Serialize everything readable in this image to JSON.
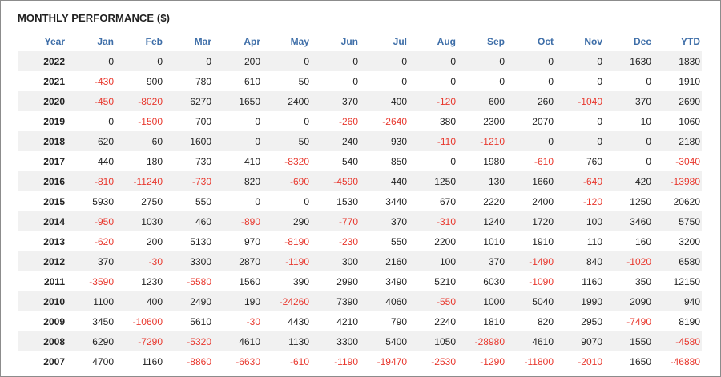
{
  "title": "MONTHLY PERFORMANCE ($)",
  "colors": {
    "header_text": "#3e6ea8",
    "negative": "#e8382e",
    "stripe": "#f1f1f1"
  },
  "columns": [
    "Year",
    "Jan",
    "Feb",
    "Mar",
    "Apr",
    "May",
    "Jun",
    "Jul",
    "Aug",
    "Sep",
    "Oct",
    "Nov",
    "Dec",
    "YTD"
  ],
  "rows": [
    [
      "2022",
      "0",
      "0",
      "0",
      "200",
      "0",
      "0",
      "0",
      "0",
      "0",
      "0",
      "0",
      "1630",
      "1830"
    ],
    [
      "2021",
      "-430",
      "900",
      "780",
      "610",
      "50",
      "0",
      "0",
      "0",
      "0",
      "0",
      "0",
      "0",
      "1910"
    ],
    [
      "2020",
      "-450",
      "-8020",
      "6270",
      "1650",
      "2400",
      "370",
      "400",
      "-120",
      "600",
      "260",
      "-1040",
      "370",
      "2690"
    ],
    [
      "2019",
      "0",
      "-1500",
      "700",
      "0",
      "0",
      "-260",
      "-2640",
      "380",
      "2300",
      "2070",
      "0",
      "10",
      "1060"
    ],
    [
      "2018",
      "620",
      "60",
      "1600",
      "0",
      "50",
      "240",
      "930",
      "-110",
      "-1210",
      "0",
      "0",
      "0",
      "2180"
    ],
    [
      "2017",
      "440",
      "180",
      "730",
      "410",
      "-8320",
      "540",
      "850",
      "0",
      "1980",
      "-610",
      "760",
      "0",
      "-3040"
    ],
    [
      "2016",
      "-810",
      "-11240",
      "-730",
      "820",
      "-690",
      "-4590",
      "440",
      "1250",
      "130",
      "1660",
      "-640",
      "420",
      "-13980"
    ],
    [
      "2015",
      "5930",
      "2750",
      "550",
      "0",
      "0",
      "1530",
      "3440",
      "670",
      "2220",
      "2400",
      "-120",
      "1250",
      "20620"
    ],
    [
      "2014",
      "-950",
      "1030",
      "460",
      "-890",
      "290",
      "-770",
      "370",
      "-310",
      "1240",
      "1720",
      "100",
      "3460",
      "5750"
    ],
    [
      "2013",
      "-620",
      "200",
      "5130",
      "970",
      "-8190",
      "-230",
      "550",
      "2200",
      "1010",
      "1910",
      "110",
      "160",
      "3200"
    ],
    [
      "2012",
      "370",
      "-30",
      "3300",
      "2870",
      "-1190",
      "300",
      "2160",
      "100",
      "370",
      "-1490",
      "840",
      "-1020",
      "6580"
    ],
    [
      "2011",
      "-3590",
      "1230",
      "-5580",
      "1560",
      "390",
      "2990",
      "3490",
      "5210",
      "6030",
      "-1090",
      "1160",
      "350",
      "12150"
    ],
    [
      "2010",
      "1100",
      "400",
      "2490",
      "190",
      "-24260",
      "7390",
      "4060",
      "-550",
      "1000",
      "5040",
      "1990",
      "2090",
      "940"
    ],
    [
      "2009",
      "3450",
      "-10600",
      "5610",
      "-30",
      "4430",
      "4210",
      "790",
      "2240",
      "1810",
      "820",
      "2950",
      "-7490",
      "8190"
    ],
    [
      "2008",
      "6290",
      "-7290",
      "-5320",
      "4610",
      "1130",
      "3300",
      "5400",
      "1050",
      "-28980",
      "4610",
      "9070",
      "1550",
      "-4580"
    ],
    [
      "2007",
      "4700",
      "1160",
      "-8860",
      "-6630",
      "-610",
      "-1190",
      "-19470",
      "-2530",
      "-1290",
      "-11800",
      "-2010",
      "1650",
      "-46880"
    ]
  ]
}
